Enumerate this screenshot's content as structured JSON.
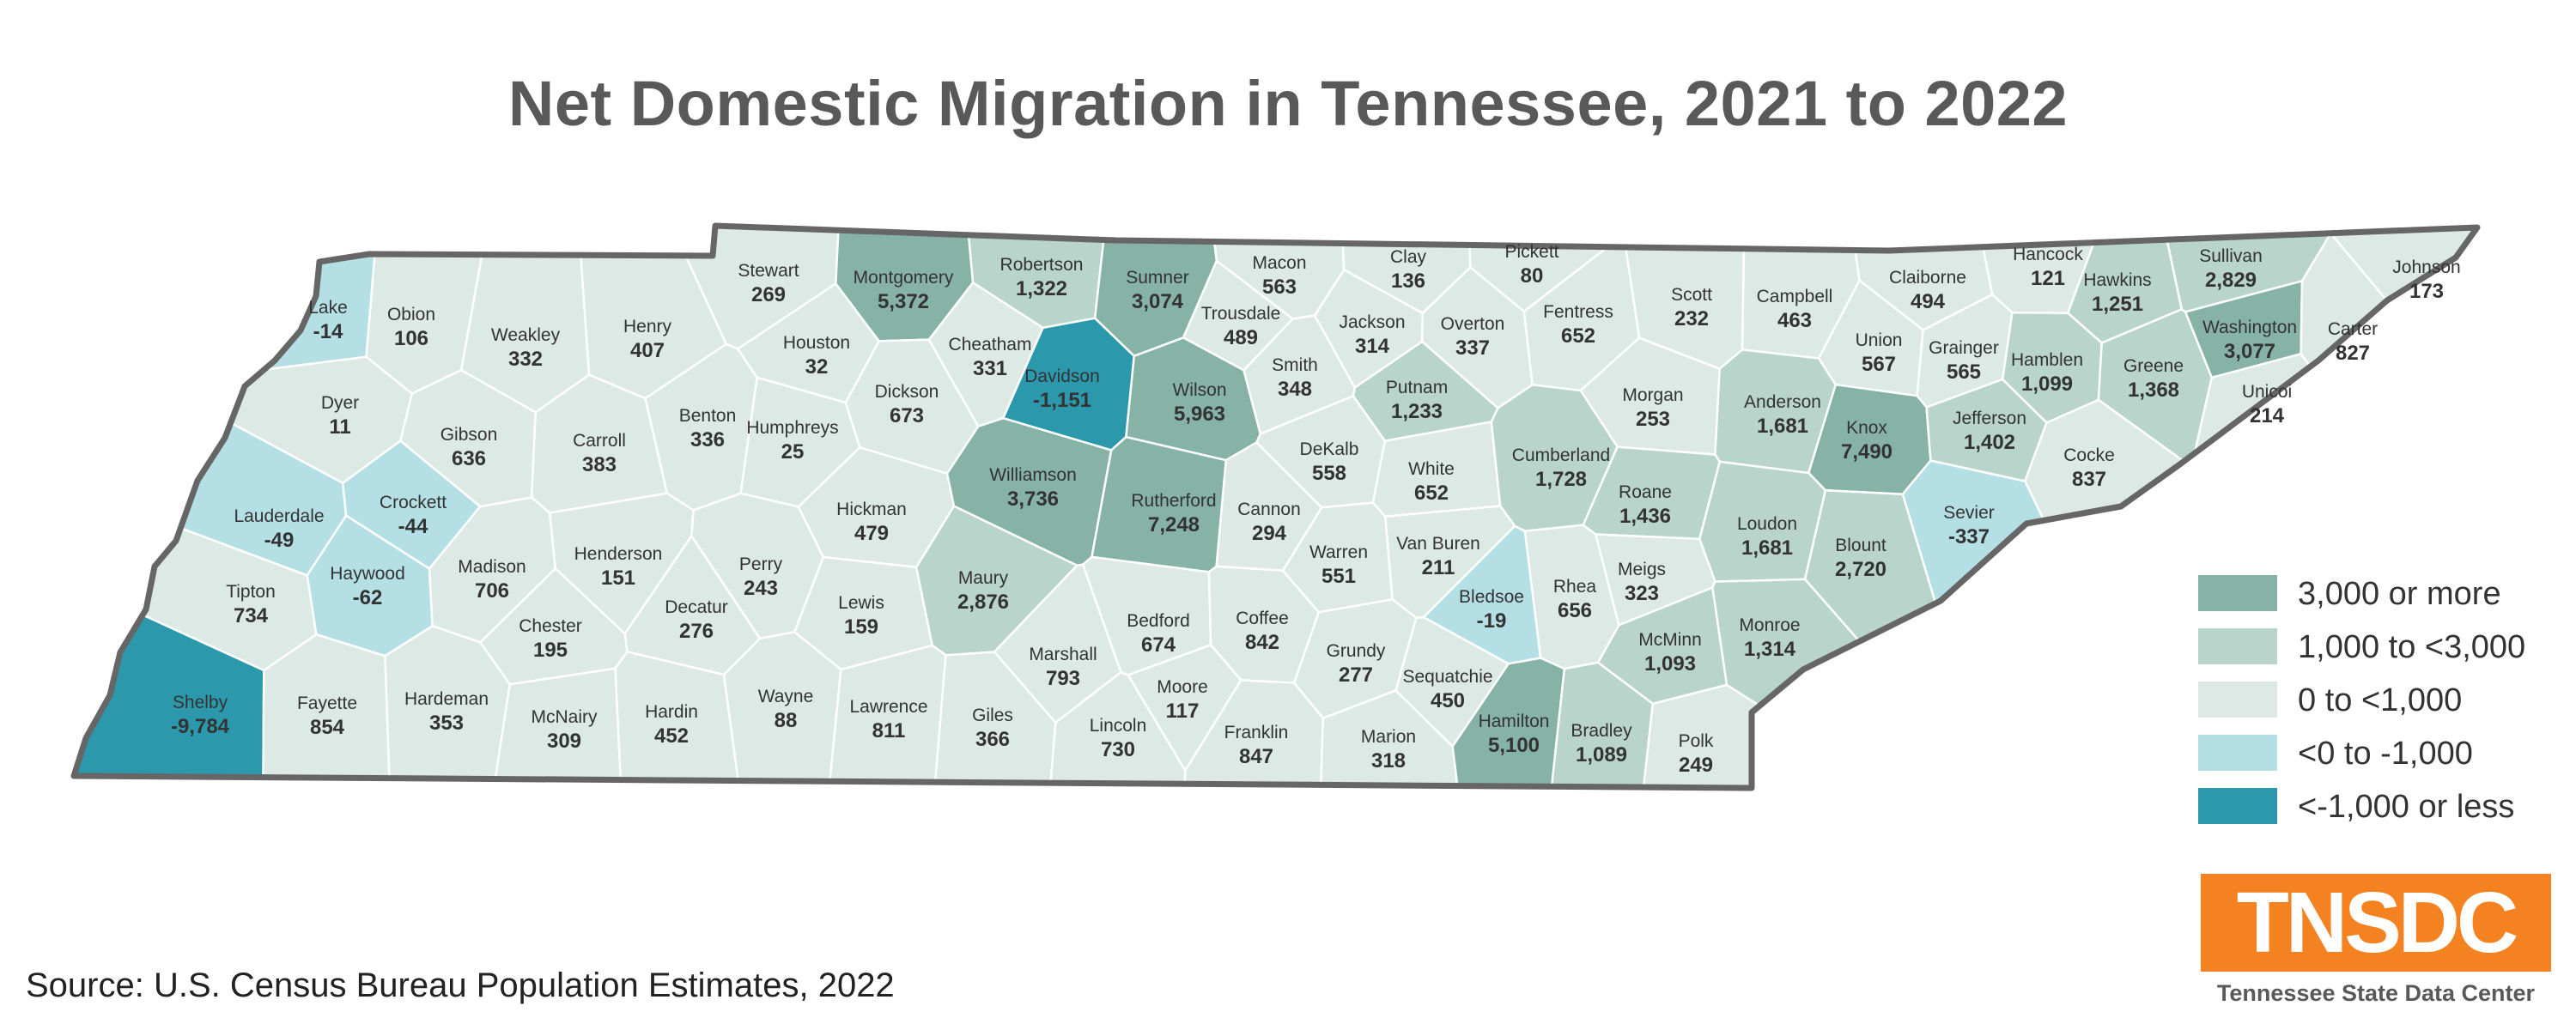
{
  "title": "Net Domestic Migration in Tennessee, 2021 to 2022",
  "source": "Source:  U.S. Census Bureau Population Estimates, 2022",
  "logo": {
    "text": "TNSDC",
    "caption": "Tennessee State Data Center",
    "color": "#f58220"
  },
  "legend": [
    {
      "label": "3,000 or more",
      "color": "#86b3a6"
    },
    {
      "label": "1,000 to <3,000",
      "color": "#b8d4cb"
    },
    {
      "label": "0 to <1,000",
      "color": "#dde9e4"
    },
    {
      "label": "<0 to -1,000",
      "color": "#b4dfe4"
    },
    {
      "label": "<-1,000 or less",
      "color": "#2b99ab"
    }
  ],
  "counties": [
    {
      "name": "Lake",
      "value": "-14"
    },
    {
      "name": "Obion",
      "value": "106"
    },
    {
      "name": "Weakley",
      "value": "332"
    },
    {
      "name": "Henry",
      "value": "407"
    },
    {
      "name": "Stewart",
      "value": "269"
    },
    {
      "name": "Montgomery",
      "value": "5,372"
    },
    {
      "name": "Robertson",
      "value": "1,322"
    },
    {
      "name": "Sumner",
      "value": "3,074"
    },
    {
      "name": "Macon",
      "value": "563"
    },
    {
      "name": "Clay",
      "value": "136"
    },
    {
      "name": "Pickett",
      "value": "80"
    },
    {
      "name": "Scott",
      "value": "232"
    },
    {
      "name": "Campbell",
      "value": "463"
    },
    {
      "name": "Claiborne",
      "value": "494"
    },
    {
      "name": "Hancock",
      "value": "121"
    },
    {
      "name": "Hawkins",
      "value": "1,251"
    },
    {
      "name": "Sullivan",
      "value": "2,829"
    },
    {
      "name": "Johnson",
      "value": "173"
    },
    {
      "name": "Dyer",
      "value": "11"
    },
    {
      "name": "Gibson",
      "value": "636"
    },
    {
      "name": "Carroll",
      "value": "383"
    },
    {
      "name": "Benton",
      "value": "336"
    },
    {
      "name": "Houston",
      "value": "32"
    },
    {
      "name": "Humphreys",
      "value": "25"
    },
    {
      "name": "Dickson",
      "value": "673"
    },
    {
      "name": "Cheatham",
      "value": "331"
    },
    {
      "name": "Davidson",
      "value": "-1,151"
    },
    {
      "name": "Trousdale",
      "value": "489"
    },
    {
      "name": "Wilson",
      "value": "5,963"
    },
    {
      "name": "Smith",
      "value": "348"
    },
    {
      "name": "Jackson",
      "value": "314"
    },
    {
      "name": "Overton",
      "value": "337"
    },
    {
      "name": "Fentress",
      "value": "652"
    },
    {
      "name": "Morgan",
      "value": "253"
    },
    {
      "name": "Anderson",
      "value": "1,681"
    },
    {
      "name": "Union",
      "value": "567"
    },
    {
      "name": "Grainger",
      "value": "565"
    },
    {
      "name": "Hamblen",
      "value": "1,099"
    },
    {
      "name": "Greene",
      "value": "1,368"
    },
    {
      "name": "Washington",
      "value": "3,077"
    },
    {
      "name": "Carter",
      "value": "827"
    },
    {
      "name": "Unicoi",
      "value": "214"
    },
    {
      "name": "Lauderdale",
      "value": "-49"
    },
    {
      "name": "Crockett",
      "value": "-44"
    },
    {
      "name": "Haywood",
      "value": "-62"
    },
    {
      "name": "Madison",
      "value": "706"
    },
    {
      "name": "Henderson",
      "value": "151"
    },
    {
      "name": "Decatur",
      "value": "276"
    },
    {
      "name": "Perry",
      "value": "243"
    },
    {
      "name": "Hickman",
      "value": "479"
    },
    {
      "name": "Williamson",
      "value": "3,736"
    },
    {
      "name": "Rutherford",
      "value": "7,248"
    },
    {
      "name": "Cannon",
      "value": "294"
    },
    {
      "name": "DeKalb",
      "value": "558"
    },
    {
      "name": "Putnam",
      "value": "1,233"
    },
    {
      "name": "White",
      "value": "652"
    },
    {
      "name": "Cumberland",
      "value": "1,728"
    },
    {
      "name": "Roane",
      "value": "1,436"
    },
    {
      "name": "Knox",
      "value": "7,490"
    },
    {
      "name": "Jefferson",
      "value": "1,402"
    },
    {
      "name": "Cocke",
      "value": "837"
    },
    {
      "name": "Sevier",
      "value": "-337"
    },
    {
      "name": "Loudon",
      "value": "1,681"
    },
    {
      "name": "Blount",
      "value": "2,720"
    },
    {
      "name": "Tipton",
      "value": "734"
    },
    {
      "name": "Chester",
      "value": "195"
    },
    {
      "name": "Lewis",
      "value": "159"
    },
    {
      "name": "Maury",
      "value": "2,876"
    },
    {
      "name": "Marshall",
      "value": "793"
    },
    {
      "name": "Bedford",
      "value": "674"
    },
    {
      "name": "Coffee",
      "value": "842"
    },
    {
      "name": "Warren",
      "value": "551"
    },
    {
      "name": "Van Buren",
      "value": "211"
    },
    {
      "name": "Bledsoe",
      "value": "-19"
    },
    {
      "name": "Rhea",
      "value": "656"
    },
    {
      "name": "Meigs",
      "value": "323"
    },
    {
      "name": "McMinn",
      "value": "1,093"
    },
    {
      "name": "Monroe",
      "value": "1,314"
    },
    {
      "name": "Shelby",
      "value": "-9,784"
    },
    {
      "name": "Fayette",
      "value": "854"
    },
    {
      "name": "Hardeman",
      "value": "353"
    },
    {
      "name": "McNairy",
      "value": "309"
    },
    {
      "name": "Hardin",
      "value": "452"
    },
    {
      "name": "Wayne",
      "value": "88"
    },
    {
      "name": "Lawrence",
      "value": "811"
    },
    {
      "name": "Giles",
      "value": "366"
    },
    {
      "name": "Lincoln",
      "value": "730"
    },
    {
      "name": "Moore",
      "value": "117"
    },
    {
      "name": "Franklin",
      "value": "847"
    },
    {
      "name": "Grundy",
      "value": "277"
    },
    {
      "name": "Sequatchie",
      "value": "450"
    },
    {
      "name": "Marion",
      "value": "318"
    },
    {
      "name": "Hamilton",
      "value": "5,100"
    },
    {
      "name": "Bradley",
      "value": "1,089"
    },
    {
      "name": "Polk",
      "value": "249"
    }
  ]
}
